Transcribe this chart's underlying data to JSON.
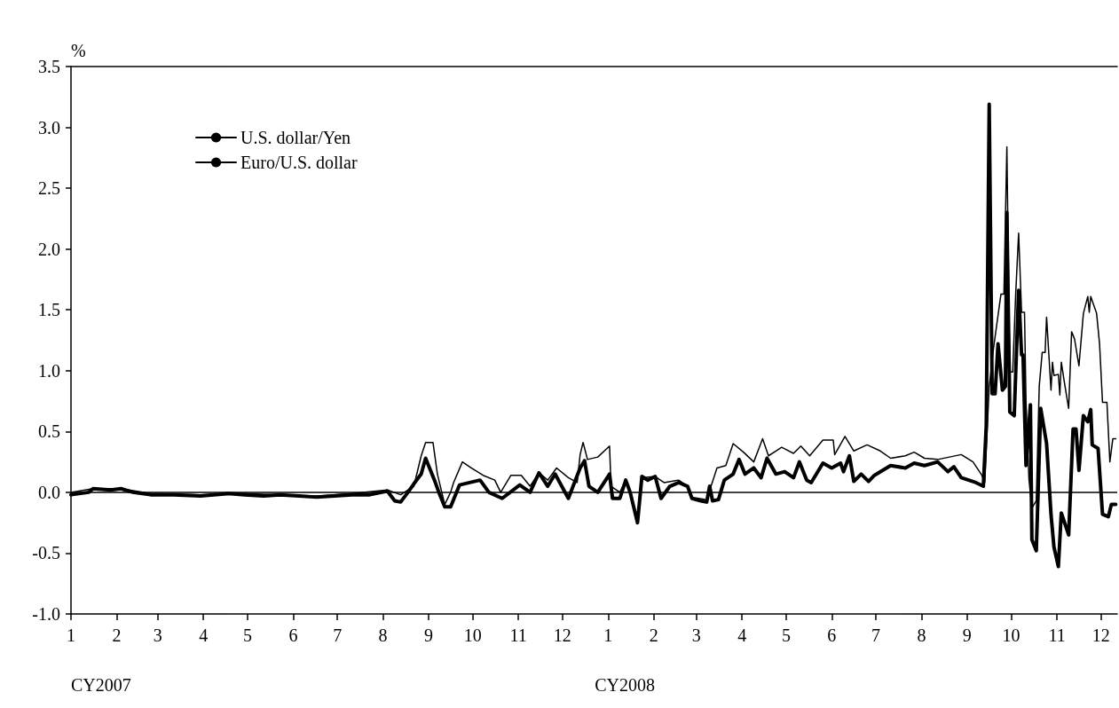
{
  "chart_data": {
    "type": "line",
    "ylabel": "%",
    "annotations": [
      "CY2007",
      "CY2008"
    ],
    "xlim": [
      "2007-01-01",
      "2008-12-12"
    ],
    "xticks": [
      {
        "value": "2007-01",
        "label": "1"
      },
      {
        "value": "2007-02",
        "label": "2"
      },
      {
        "value": "2007-03",
        "label": "3"
      },
      {
        "value": "2007-04",
        "label": "4"
      },
      {
        "value": "2007-05",
        "label": "5"
      },
      {
        "value": "2007-06",
        "label": "6"
      },
      {
        "value": "2007-07",
        "label": "7"
      },
      {
        "value": "2007-08",
        "label": "8"
      },
      {
        "value": "2007-09",
        "label": "9"
      },
      {
        "value": "2007-10",
        "label": "10"
      },
      {
        "value": "2007-11",
        "label": "11"
      },
      {
        "value": "2007-12",
        "label": "12"
      },
      {
        "value": "2008-01",
        "label": "1"
      },
      {
        "value": "2008-02",
        "label": "2"
      },
      {
        "value": "2008-03",
        "label": "3"
      },
      {
        "value": "2008-04",
        "label": "4"
      },
      {
        "value": "2008-05",
        "label": "5"
      },
      {
        "value": "2008-06",
        "label": "6"
      },
      {
        "value": "2008-07",
        "label": "7"
      },
      {
        "value": "2008-08",
        "label": "8"
      },
      {
        "value": "2008-09",
        "label": "9"
      },
      {
        "value": "2008-10",
        "label": "10"
      },
      {
        "value": "2008-11",
        "label": "11"
      },
      {
        "value": "2008-12",
        "label": "12"
      }
    ],
    "ylim": [
      -1.0,
      3.5
    ],
    "yticks": [
      {
        "value": -1,
        "label": "-1.0"
      },
      {
        "value": -0.5,
        "label": "-0.5"
      },
      {
        "value": 0,
        "label": "0.0"
      },
      {
        "value": 0.5,
        "label": "0.5"
      },
      {
        "value": 1,
        "label": "1.0"
      },
      {
        "value": 1.5,
        "label": "1.5"
      },
      {
        "value": 2,
        "label": "2.0"
      },
      {
        "value": 2.5,
        "label": "2.5"
      },
      {
        "value": 3,
        "label": "3.0"
      },
      {
        "value": 3.5,
        "label": "3.5"
      }
    ],
    "grid": false,
    "legend": "top left",
    "marker": "none",
    "line_style": "solid",
    "ref_lines": [
      {
        "axis": "y",
        "value": 0,
        "color": "#000000"
      }
    ],
    "series": [
      {
        "name": "U.S. dollar/Yen",
        "color": "#000000",
        "x": [
          "2007-01-01",
          "2007-01-13",
          "2007-01-16",
          "2007-01-28",
          "2007-02-04",
          "2007-02-12",
          "2007-02-24",
          "2007-03-12",
          "2007-03-30",
          "2007-04-18",
          "2007-04-29",
          "2007-05-12",
          "2007-05-23",
          "2007-06-05",
          "2007-06-17",
          "2007-06-29",
          "2007-07-11",
          "2007-07-23",
          "2007-08-04",
          "2007-08-09",
          "2007-08-13",
          "2007-08-18",
          "2007-08-22",
          "2007-08-27",
          "2007-08-30",
          "2007-09-05",
          "2007-09-08",
          "2007-09-12",
          "2007-09-16",
          "2007-09-22",
          "2007-10-06",
          "2007-10-12",
          "2007-10-21",
          "2007-11-02",
          "2007-11-09",
          "2007-11-15",
          "2007-11-21",
          "2007-11-26",
          "2007-12-05",
          "2007-12-13",
          "2007-12-16",
          "2007-12-19",
          "2007-12-25",
          "2008-01-02",
          "2008-01-04",
          "2008-01-09",
          "2008-01-13",
          "2008-01-16",
          "2008-01-21",
          "2008-01-24",
          "2008-01-28",
          "2008-02-02",
          "2008-02-06",
          "2008-02-12",
          "2008-02-18",
          "2008-02-24",
          "2008-02-27",
          "2008-03-04",
          "2008-03-08",
          "2008-03-10",
          "2008-03-12",
          "2008-03-16",
          "2008-03-20",
          "2008-03-26",
          "2008-03-30",
          "2008-04-03",
          "2008-04-09",
          "2008-04-14",
          "2008-04-18",
          "2008-04-24",
          "2008-04-30",
          "2008-05-06",
          "2008-05-10",
          "2008-05-15",
          "2008-05-18",
          "2008-05-26",
          "2008-06-01",
          "2008-06-07",
          "2008-06-09",
          "2008-06-13",
          "2008-06-16",
          "2008-06-21",
          "2008-06-26",
          "2008-06-30",
          "2008-07-11",
          "2008-07-21",
          "2008-07-27",
          "2008-08-03",
          "2008-08-12",
          "2008-08-19",
          "2008-08-23",
          "2008-08-28",
          "2008-09-07",
          "2008-09-12",
          "2008-09-14",
          "2008-09-16",
          "2008-09-18",
          "2008-09-20",
          "2008-09-22",
          "2008-09-25",
          "2008-09-27",
          "2008-09-28",
          "2008-09-30",
          "2008-10-03",
          "2008-10-06",
          "2008-10-08",
          "2008-10-09",
          "2008-10-11",
          "2008-10-14",
          "2008-10-15",
          "2008-10-18",
          "2008-10-21",
          "2008-10-25",
          "2008-10-28",
          "2008-10-30",
          "2008-11-02",
          "2008-11-04",
          "2008-11-09",
          "2008-11-12",
          "2008-11-14",
          "2008-11-16",
          "2008-11-19",
          "2008-11-22",
          "2008-11-24",
          "2008-11-25",
          "2008-11-29",
          "2008-12-02",
          "2008-12-06",
          "2008-12-08",
          "2008-12-11"
        ],
        "values": [
          -0.02,
          0.0,
          0.03,
          0.02,
          0.03,
          0.0,
          -0.02,
          -0.02,
          -0.03,
          -0.01,
          -0.02,
          -0.03,
          -0.02,
          -0.03,
          -0.04,
          -0.03,
          -0.02,
          -0.02,
          0.01,
          -0.07,
          -0.08,
          0.0,
          0.07,
          0.15,
          0.28,
          0.1,
          0.0,
          -0.12,
          -0.12,
          0.06,
          0.1,
          0.0,
          -0.05,
          0.06,
          0.0,
          0.16,
          0.05,
          0.15,
          -0.05,
          0.2,
          0.26,
          0.05,
          0.0,
          0.15,
          -0.05,
          -0.05,
          0.1,
          0.0,
          -0.25,
          0.13,
          0.1,
          0.13,
          -0.05,
          0.05,
          0.08,
          0.05,
          -0.05,
          -0.07,
          -0.08,
          0.05,
          -0.07,
          -0.06,
          0.1,
          0.15,
          0.27,
          0.15,
          0.2,
          0.12,
          0.28,
          0.15,
          0.17,
          0.12,
          0.25,
          0.1,
          0.08,
          0.24,
          0.2,
          0.24,
          0.17,
          0.3,
          0.09,
          0.15,
          0.09,
          0.14,
          0.22,
          0.2,
          0.24,
          0.22,
          0.25,
          0.17,
          0.21,
          0.12,
          0.08,
          0.05,
          0.55,
          3.19,
          0.81,
          0.81,
          1.22,
          0.84,
          0.87,
          2.3,
          0.66,
          0.63,
          1.66,
          1.13,
          1.13,
          0.22,
          0.72,
          -0.39,
          -0.48,
          0.69,
          0.4,
          -0.18,
          -0.45,
          -0.61,
          -0.17,
          -0.35,
          0.52,
          0.52,
          0.18,
          0.63,
          0.58,
          0.68,
          0.39,
          0.36,
          -0.18,
          -0.2,
          -0.1,
          -0.1
        ]
      },
      {
        "name": "Euro/U.S. dollar",
        "color": "#000000",
        "x": [
          "2007-01-01",
          "2007-01-16",
          "2007-02-04",
          "2007-02-24",
          "2007-03-30",
          "2007-04-29",
          "2007-05-23",
          "2007-06-17",
          "2007-07-11",
          "2007-08-04",
          "2007-08-13",
          "2007-08-22",
          "2007-08-27",
          "2007-08-30",
          "2007-09-04",
          "2007-09-07",
          "2007-09-12",
          "2007-09-16",
          "2007-09-18",
          "2007-09-24",
          "2007-09-30",
          "2007-10-08",
          "2007-10-16",
          "2007-10-20",
          "2007-10-27",
          "2007-11-03",
          "2007-11-09",
          "2007-11-15",
          "2007-11-21",
          "2007-11-27",
          "2007-12-05",
          "2007-12-11",
          "2007-12-13",
          "2007-12-15",
          "2007-12-18",
          "2007-12-25",
          "2008-01-02",
          "2008-01-03",
          "2008-01-09",
          "2008-01-13",
          "2008-01-21",
          "2008-01-24",
          "2008-02-02",
          "2008-02-08",
          "2008-02-18",
          "2008-02-24",
          "2008-02-27",
          "2008-03-08",
          "2008-03-15",
          "2008-03-21",
          "2008-03-26",
          "2008-04-02",
          "2008-04-09",
          "2008-04-15",
          "2008-04-19",
          "2008-04-28",
          "2008-05-06",
          "2008-05-11",
          "2008-05-17",
          "2008-05-26",
          "2008-06-02",
          "2008-06-03",
          "2008-06-10",
          "2008-06-16",
          "2008-06-25",
          "2008-07-04",
          "2008-07-11",
          "2008-07-21",
          "2008-07-27",
          "2008-08-03",
          "2008-08-12",
          "2008-08-28",
          "2008-09-05",
          "2008-09-11",
          "2008-09-13",
          "2008-09-16",
          "2008-09-19",
          "2008-09-24",
          "2008-09-26",
          "2008-09-28",
          "2008-09-30",
          "2008-10-02",
          "2008-10-04",
          "2008-10-06",
          "2008-10-08",
          "2008-10-10",
          "2008-10-11",
          "2008-10-13",
          "2008-10-15",
          "2008-10-18",
          "2008-10-20",
          "2008-10-22",
          "2008-10-24",
          "2008-10-25",
          "2008-10-28",
          "2008-10-29",
          "2008-10-30",
          "2008-11-02",
          "2008-11-03",
          "2008-11-04",
          "2008-11-06",
          "2008-11-09",
          "2008-11-11",
          "2008-11-13",
          "2008-11-16",
          "2008-11-19",
          "2008-11-22",
          "2008-11-23",
          "2008-11-24",
          "2008-11-28",
          "2008-11-30",
          "2008-12-02",
          "2008-12-05",
          "2008-12-07",
          "2008-12-09",
          "2008-12-11"
        ],
        "values": [
          0.0,
          0.03,
          0.03,
          -0.01,
          -0.02,
          -0.01,
          -0.02,
          -0.03,
          -0.01,
          0.02,
          -0.02,
          0.05,
          0.3,
          0.41,
          0.41,
          0.15,
          -0.1,
          0.0,
          0.08,
          0.25,
          0.2,
          0.14,
          0.1,
          0.0,
          0.14,
          0.14,
          0.05,
          0.16,
          0.1,
          0.2,
          0.12,
          0.08,
          0.31,
          0.41,
          0.27,
          0.29,
          0.38,
          0.05,
          0.0,
          0.1,
          -0.2,
          0.12,
          0.13,
          0.08,
          0.1,
          0.05,
          -0.04,
          -0.06,
          0.2,
          0.22,
          0.4,
          0.33,
          0.25,
          0.44,
          0.3,
          0.37,
          0.32,
          0.38,
          0.3,
          0.43,
          0.43,
          0.31,
          0.46,
          0.34,
          0.39,
          0.34,
          0.28,
          0.3,
          0.33,
          0.28,
          0.27,
          0.31,
          0.25,
          0.14,
          0.08,
          0.87,
          1.19,
          1.63,
          1.63,
          2.84,
          0.99,
          0.99,
          1.63,
          2.13,
          1.48,
          1.48,
          0.75,
          0.11,
          -0.13,
          -0.07,
          0.87,
          1.15,
          1.15,
          1.44,
          0.84,
          1.07,
          0.96,
          0.97,
          0.8,
          1.07,
          0.91,
          0.69,
          1.32,
          1.26,
          1.04,
          1.47,
          1.61,
          1.48,
          1.61,
          1.47,
          1.22,
          0.74,
          0.74,
          0.25,
          0.44,
          0.44
        ]
      }
    ]
  }
}
